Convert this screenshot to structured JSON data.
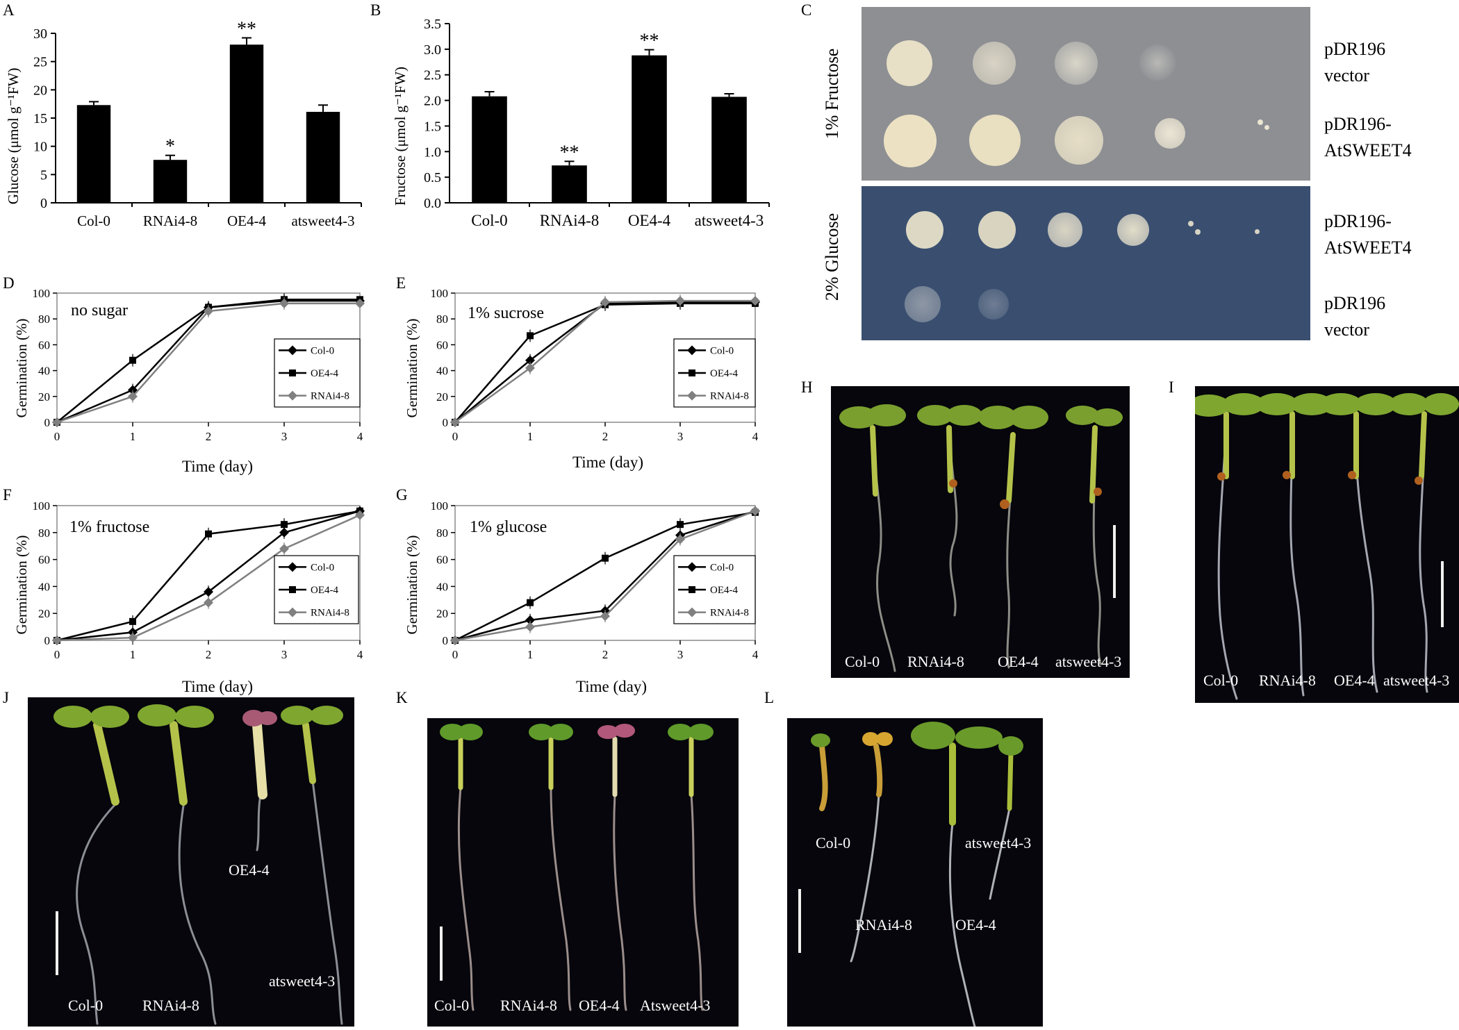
{
  "panel_labels": [
    "A",
    "B",
    "C",
    "D",
    "E",
    "F",
    "G",
    "H",
    "I",
    "J",
    "K",
    "L"
  ],
  "colors": {
    "bar": "#000000",
    "ink": "#000000",
    "grey_series": "#808080",
    "plate_top": "#8d8f93",
    "plate_bottom": "#3a4f70",
    "photo_bg": "#06060c"
  },
  "chart_data": [
    {
      "id": "A",
      "type": "bar",
      "ylabel": "Glucose (μmol g⁻¹FW)",
      "categories": [
        "Col-0",
        "RNAi4-8",
        "OE4-4",
        "atsweet4-3"
      ],
      "values": [
        17.3,
        7.6,
        28.0,
        16.1
      ],
      "errors": [
        0.6,
        0.8,
        1.2,
        1.2
      ],
      "significance": [
        "",
        "*",
        "**",
        ""
      ],
      "ylim": [
        0,
        30
      ],
      "yticks": [
        0,
        5,
        10,
        15,
        20,
        25,
        30
      ],
      "ytick_labels": [
        "0",
        "5",
        "10",
        "15",
        "20",
        "25",
        "30"
      ]
    },
    {
      "id": "B",
      "type": "bar",
      "ylabel": "Fructose (μmol g⁻¹FW)",
      "categories": [
        "Col-0",
        "RNAi4-8",
        "OE4-4",
        "atsweet4-3"
      ],
      "values": [
        2.08,
        0.73,
        2.88,
        2.07
      ],
      "errors": [
        0.09,
        0.08,
        0.11,
        0.06
      ],
      "significance": [
        "",
        "**",
        "**",
        ""
      ],
      "ylim": [
        0,
        3.5
      ],
      "yticks": [
        0,
        0.5,
        1,
        1.5,
        2,
        2.5,
        3,
        3.5
      ],
      "ytick_labels": [
        "0.0",
        "0.5",
        "1.0",
        "1.5",
        "2.0",
        "2.5",
        "3.0",
        "3.5"
      ]
    },
    {
      "id": "D",
      "type": "line",
      "annotation": "no sugar",
      "xlabel": "Time (day)",
      "ylabel": "Germination (%)",
      "x": [
        0,
        1,
        2,
        3,
        4
      ],
      "xlim": [
        0,
        4
      ],
      "ylim": [
        0,
        100
      ],
      "yticks": [
        0,
        20,
        40,
        60,
        80,
        100
      ],
      "xticks": [
        0,
        1,
        2,
        3,
        4
      ],
      "legend": "center-right",
      "series": [
        {
          "name": "Col-0",
          "marker": "diamond",
          "color": "#000000",
          "values": [
            0,
            25,
            89,
            94,
            94
          ]
        },
        {
          "name": "OE4-4",
          "marker": "square",
          "color": "#000000",
          "values": [
            0,
            48,
            89,
            95,
            95
          ]
        },
        {
          "name": "RNAi4-8",
          "marker": "diamond",
          "color": "#808080",
          "values": [
            0,
            20,
            86,
            92,
            92
          ]
        }
      ]
    },
    {
      "id": "E",
      "type": "line",
      "annotation": "1% sucrose",
      "xlabel": "Time (day)",
      "ylabel": "Germination (%)",
      "x": [
        0,
        1,
        2,
        3,
        4
      ],
      "xlim": [
        0,
        4
      ],
      "ylim": [
        0,
        100
      ],
      "yticks": [
        0,
        20,
        40,
        60,
        80,
        100
      ],
      "xticks": [
        0,
        1,
        2,
        3,
        4
      ],
      "legend": "center-right",
      "series": [
        {
          "name": "Col-0",
          "marker": "diamond",
          "color": "#000000",
          "values": [
            0,
            48,
            92,
            93,
            93
          ]
        },
        {
          "name": "OE4-4",
          "marker": "square",
          "color": "#000000",
          "values": [
            0,
            67,
            91,
            92,
            92
          ]
        },
        {
          "name": "RNAi4-8",
          "marker": "diamond",
          "color": "#808080",
          "values": [
            0,
            42,
            93,
            94,
            94
          ]
        }
      ]
    },
    {
      "id": "F",
      "type": "line",
      "annotation": "1% fructose",
      "xlabel": "Time (day)",
      "ylabel": "Germination (%)",
      "x": [
        0,
        1,
        2,
        3,
        4
      ],
      "xlim": [
        0,
        4
      ],
      "ylim": [
        0,
        100
      ],
      "yticks": [
        0,
        20,
        40,
        60,
        80,
        100
      ],
      "xticks": [
        0,
        1,
        2,
        3,
        4
      ],
      "legend": "bottom-right",
      "series": [
        {
          "name": "Col-0",
          "marker": "diamond",
          "color": "#000000",
          "values": [
            0,
            6,
            36,
            80,
            96
          ]
        },
        {
          "name": "OE4-4",
          "marker": "square",
          "color": "#000000",
          "values": [
            0,
            14,
            79,
            86,
            96
          ]
        },
        {
          "name": "RNAi4-8",
          "marker": "diamond",
          "color": "#808080",
          "values": [
            0,
            2,
            28,
            68,
            93
          ]
        }
      ]
    },
    {
      "id": "G",
      "type": "line",
      "annotation": "1% glucose",
      "xlabel": "Time (day)",
      "ylabel": "Germination (%)",
      "x": [
        0,
        1,
        2,
        3,
        4
      ],
      "xlim": [
        0,
        4
      ],
      "ylim": [
        0,
        100
      ],
      "yticks": [
        0,
        20,
        40,
        60,
        80,
        100
      ],
      "xticks": [
        0,
        1,
        2,
        3,
        4
      ],
      "legend": "bottom-right",
      "series": [
        {
          "name": "Col-0",
          "marker": "diamond",
          "color": "#000000",
          "values": [
            0,
            15,
            22,
            78,
            96
          ]
        },
        {
          "name": "OE4-4",
          "marker": "square",
          "color": "#000000",
          "values": [
            0,
            28,
            61,
            86,
            95
          ]
        },
        {
          "name": "RNAi4-8",
          "marker": "diamond",
          "color": "#808080",
          "values": [
            0,
            10,
            18,
            75,
            96
          ]
        }
      ]
    }
  ],
  "yeast_plates": [
    {
      "side_label": "1% Fructose",
      "strains": [
        "pDR196 vector",
        "pDR196-AtSWEET4"
      ]
    },
    {
      "side_label": "2% Glucose",
      "strains": [
        "pDR196-AtSWEET4",
        "pDR196 vector"
      ]
    }
  ],
  "yeast_strain_lines": {
    "s1": [
      "pDR196",
      "vector"
    ],
    "s2": [
      "pDR196-",
      "AtSWEET4"
    ],
    "s3": [
      "pDR196-",
      "AtSWEET4"
    ],
    "s4": [
      "pDR196",
      "vector"
    ]
  },
  "seedling_panels": {
    "H": [
      "Col-0",
      "RNAi4-8",
      "OE4-4",
      "atsweet4-3"
    ],
    "I": [
      "Col-0",
      "RNAi4-8",
      "OE4-4",
      "atsweet4-3"
    ],
    "J": [
      "Col-0",
      "RNAi4-8",
      "OE4-4",
      "atsweet4-3"
    ],
    "K": [
      "Col-0",
      "RNAi4-8",
      "OE4-4",
      "Atsweet4-3"
    ],
    "L": [
      "Col-0",
      "RNAi4-8",
      "OE4-4",
      "atsweet4-3"
    ]
  }
}
